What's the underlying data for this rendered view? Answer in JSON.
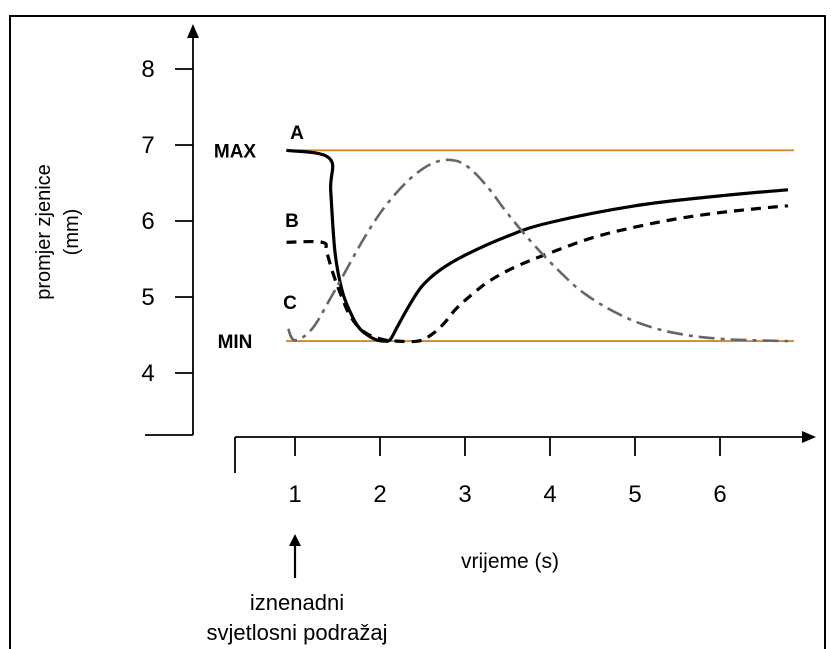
{
  "chart_data": {
    "type": "line",
    "xlabel": "vrijeme (s)",
    "ylabel": [
      "promjer zjenice",
      "(mm)"
    ],
    "x_ticks": [
      "1",
      "2",
      "3",
      "4",
      "5",
      "6"
    ],
    "y_ticks": [
      "4",
      "5",
      "6",
      "7",
      "8"
    ],
    "xlim": [
      0.3,
      7.4
    ],
    "ylim": [
      3.1,
      8.6
    ],
    "reference_lines": [
      {
        "label": "MAX",
        "y": 6.93,
        "color": "#d48a2a"
      },
      {
        "label": "MIN",
        "y": 4.42,
        "color": "#d48a2a"
      }
    ],
    "series": [
      {
        "name": "A",
        "style": "solid",
        "color": "#000000",
        "x": [
          0.9,
          1.4,
          1.42,
          1.47,
          1.55,
          1.65,
          1.75,
          1.85,
          1.95,
          2.05,
          2.12,
          2.2,
          2.35,
          2.5,
          2.7,
          3.0,
          3.5,
          4.0,
          5.0,
          6.0,
          6.8
        ],
        "y": [
          6.93,
          6.83,
          6.4,
          5.6,
          5.1,
          4.8,
          4.6,
          4.5,
          4.44,
          4.42,
          4.44,
          4.6,
          4.9,
          5.15,
          5.35,
          5.55,
          5.8,
          5.98,
          6.2,
          6.33,
          6.41
        ]
      },
      {
        "name": "B",
        "style": "dashed",
        "color": "#000000",
        "x": [
          0.9,
          1.32,
          1.37,
          1.45,
          1.55,
          1.65,
          1.8,
          2.0,
          2.2,
          2.45,
          2.6,
          2.75,
          2.9,
          3.1,
          3.3,
          3.6,
          4.0,
          4.5,
          5.0,
          5.5,
          6.0,
          6.5,
          6.8
        ],
        "y": [
          5.72,
          5.72,
          5.6,
          5.3,
          5.0,
          4.75,
          4.55,
          4.45,
          4.42,
          4.42,
          4.5,
          4.65,
          4.85,
          5.05,
          5.22,
          5.4,
          5.58,
          5.78,
          5.92,
          6.03,
          6.11,
          6.17,
          6.2
        ]
      },
      {
        "name": "C",
        "style": "dash-dot",
        "color": "#666666",
        "x": [
          0.92,
          1.0,
          1.2,
          1.4,
          1.6,
          1.8,
          2.0,
          2.2,
          2.4,
          2.6,
          2.75,
          2.85,
          2.95,
          3.1,
          3.3,
          3.5,
          3.8,
          4.1,
          4.4,
          4.8,
          5.2,
          5.6,
          6.0,
          6.4,
          6.8
        ],
        "y": [
          4.58,
          4.43,
          4.58,
          4.95,
          5.35,
          5.75,
          6.1,
          6.38,
          6.6,
          6.75,
          6.8,
          6.8,
          6.77,
          6.65,
          6.4,
          6.1,
          5.7,
          5.35,
          5.05,
          4.78,
          4.6,
          4.5,
          4.45,
          4.43,
          4.42
        ]
      }
    ],
    "annotation": {
      "x": 1,
      "lines": [
        "iznenadni",
        "svjetlosni podražaj"
      ]
    }
  }
}
